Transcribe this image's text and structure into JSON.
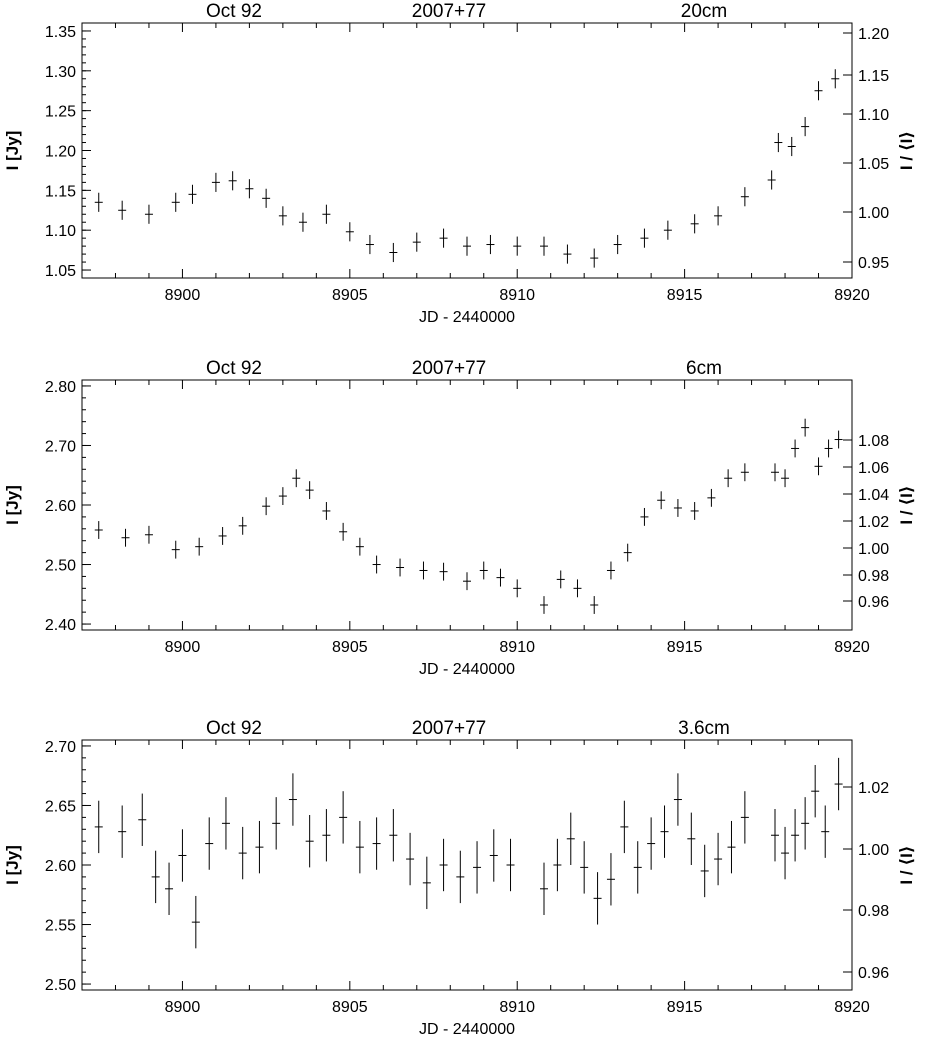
{
  "chart_data": [
    {
      "type": "scatter",
      "header_left": "Oct 92",
      "header_center": "2007+77",
      "header_right": "20cm",
      "xlabel": "JD - 2440000",
      "ylabel_left": "I [Jy]",
      "ylabel_right": "I / ⟨I⟩",
      "xlim": [
        8897,
        8920
      ],
      "ylim": [
        1.04,
        1.36
      ],
      "x_ticks": [
        "8900",
        "8905",
        "8910",
        "8915",
        "8920"
      ],
      "y_ticks": [
        "1.05",
        "1.10",
        "1.15",
        "1.20",
        "1.25",
        "1.30",
        "1.35"
      ],
      "y2_ticks": [
        "0.95",
        "1.00",
        "1.05",
        "1.10",
        "1.15",
        "1.20"
      ],
      "grid": false,
      "series": [
        {
          "error": 0.012,
          "segments": [
            {
              "x": [
                8897.5,
                8898.2,
                8899.0,
                8899.8,
                8900.3,
                8901.0,
                8901.5,
                8902.0,
                8902.5,
                8903.0,
                8903.6,
                8904.3,
                8905.0,
                8905.6,
                8906.3,
                8907.0,
                8907.8,
                8908.5,
                8909.2,
                8910.0
              ],
              "y": [
                1.135,
                1.125,
                1.12,
                1.135,
                1.145,
                1.16,
                1.162,
                1.152,
                1.14,
                1.118,
                1.11,
                1.12,
                1.098,
                1.082,
                1.072,
                1.085,
                1.09,
                1.08,
                1.082,
                1.08
              ]
            },
            {
              "x": [
                8910.8,
                8911.5,
                8912.3,
                8913.0,
                8913.8,
                8914.5,
                8915.3,
                8916.0,
                8916.8
              ],
              "y": [
                1.08,
                1.07,
                1.065,
                1.082,
                1.09,
                1.1,
                1.108,
                1.118,
                1.142
              ]
            },
            {
              "x": [
                8917.6,
                8917.8,
                8918.2,
                8918.6,
                8919.0,
                8919.5
              ],
              "y": [
                1.163,
                1.21,
                1.205,
                1.23,
                1.275,
                1.29
              ]
            }
          ]
        }
      ]
    },
    {
      "type": "scatter",
      "header_left": "Oct 92",
      "header_center": "2007+77",
      "header_right": "6cm",
      "xlabel": "JD - 2440000",
      "ylabel_left": "I [Jy]",
      "ylabel_right": "I / ⟨I⟩",
      "xlim": [
        8897,
        8920
      ],
      "ylim": [
        2.39,
        2.81
      ],
      "x_ticks": [
        "8900",
        "8905",
        "8910",
        "8915",
        "8920"
      ],
      "y_ticks": [
        "2.40",
        "2.50",
        "2.60",
        "2.70",
        "2.80"
      ],
      "y2_ticks": [
        "0.96",
        "0.98",
        "1.00",
        "1.02",
        "1.04",
        "1.06",
        "1.08"
      ],
      "grid": false,
      "series": [
        {
          "error": 0.015,
          "segments": [
            {
              "x": [
                8897.5,
                8898.3,
                8899.0,
                8899.8,
                8900.5,
                8901.2,
                8901.8,
                8902.5,
                8903.0,
                8903.4,
                8903.8,
                8904.3,
                8904.8,
                8905.3,
                8905.8,
                8906.5,
                8907.2,
                8907.8,
                8908.5,
                8909.0,
                8909.5,
                8910.0
              ],
              "y": [
                2.558,
                2.545,
                2.55,
                2.525,
                2.53,
                2.548,
                2.565,
                2.598,
                2.615,
                2.645,
                2.625,
                2.59,
                2.555,
                2.53,
                2.5,
                2.495,
                2.49,
                2.488,
                2.472,
                2.49,
                2.478,
                2.46
              ]
            },
            {
              "x": [
                8910.8,
                8911.3,
                8911.8,
                8912.3,
                8912.8,
                8913.3,
                8913.8,
                8914.3,
                8914.8,
                8915.3,
                8915.8,
                8916.3,
                8916.8
              ],
              "y": [
                2.432,
                2.475,
                2.46,
                2.432,
                2.49,
                2.52,
                2.58,
                2.608,
                2.595,
                2.59,
                2.612,
                2.645,
                2.655
              ]
            },
            {
              "x": [
                8917.7,
                8918.0,
                8918.3,
                8918.6,
                8919.0,
                8919.3,
                8919.6
              ],
              "y": [
                2.655,
                2.645,
                2.695,
                2.73,
                2.665,
                2.695,
                2.71
              ]
            }
          ]
        }
      ]
    },
    {
      "type": "scatter",
      "header_left": "Oct 92",
      "header_center": "2007+77",
      "header_right": "3.6cm",
      "xlabel": "JD - 2440000",
      "ylabel_left": "I [Jy]",
      "ylabel_right": "I / ⟨I⟩",
      "xlim": [
        8897,
        8920
      ],
      "ylim": [
        2.495,
        2.705
      ],
      "x_ticks": [
        "8900",
        "8905",
        "8910",
        "8915",
        "8920"
      ],
      "y_ticks": [
        "2.50",
        "2.55",
        "2.60",
        "2.65",
        "2.70"
      ],
      "y2_ticks": [
        "0.96",
        "0.98",
        "1.00",
        "1.02"
      ],
      "grid": false,
      "series": [
        {
          "error": 0.022,
          "segments": [
            {
              "x": [
                8897.5,
                8898.2,
                8898.8,
                8899.2,
                8899.6,
                8900.0,
                8900.4,
                8900.8,
                8901.3,
                8901.8,
                8902.3,
                8902.8,
                8903.3,
                8903.8,
                8904.3,
                8904.8,
                8905.3,
                8905.8,
                8906.3,
                8906.8,
                8907.3,
                8907.8,
                8908.3,
                8908.8,
                8909.3,
                8909.8
              ],
              "y": [
                2.632,
                2.628,
                2.638,
                2.59,
                2.58,
                2.608,
                2.552,
                2.618,
                2.635,
                2.61,
                2.615,
                2.635,
                2.655,
                2.62,
                2.625,
                2.64,
                2.615,
                2.618,
                2.625,
                2.605,
                2.585,
                2.6,
                2.59,
                2.598,
                2.608,
                2.6
              ]
            },
            {
              "x": [
                8910.8,
                8911.2,
                8911.6,
                8912.0,
                8912.4,
                8912.8,
                8913.2,
                8913.6,
                8914.0,
                8914.4,
                8914.8,
                8915.2,
                8915.6,
                8916.0,
                8916.4,
                8916.8
              ],
              "y": [
                2.58,
                2.6,
                2.622,
                2.598,
                2.572,
                2.588,
                2.632,
                2.598,
                2.618,
                2.628,
                2.655,
                2.622,
                2.595,
                2.605,
                2.615,
                2.64
              ]
            },
            {
              "x": [
                8917.7,
                8918.0,
                8918.3,
                8918.6,
                8918.9,
                8919.2,
                8919.6
              ],
              "y": [
                2.625,
                2.61,
                2.625,
                2.635,
                2.662,
                2.628,
                2.668
              ]
            }
          ]
        }
      ]
    }
  ]
}
